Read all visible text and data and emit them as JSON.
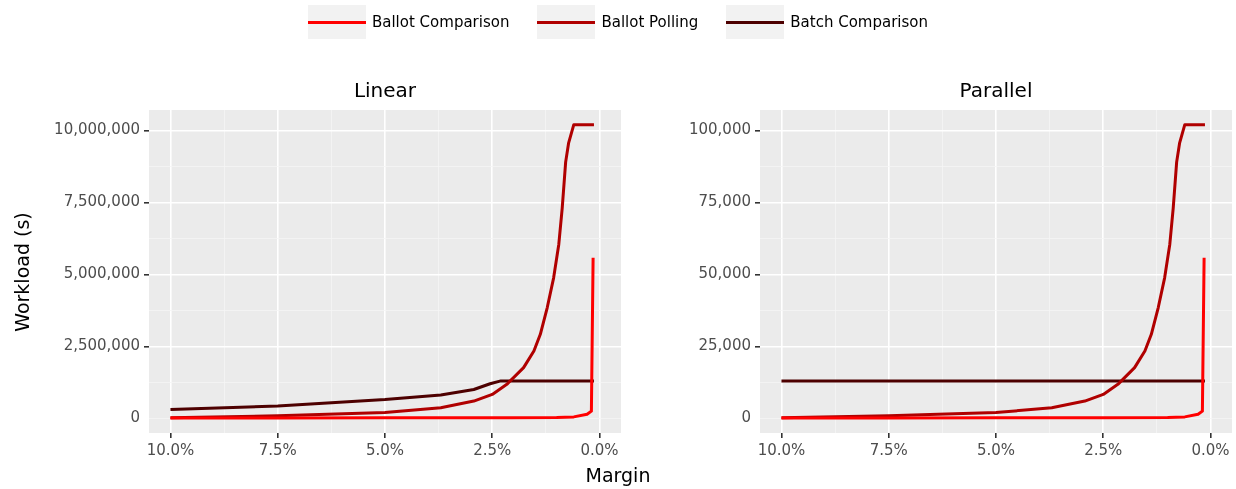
{
  "chart_data": [
    {
      "type": "line",
      "title": "Linear",
      "xlabel": "Margin",
      "ylabel": "Workload (s)",
      "legend": "top",
      "grid": true,
      "marker": "none",
      "line_style": "solid",
      "xlim": [
        10.5,
        -0.5
      ],
      "ylim": [
        -510000,
        10710000
      ],
      "xticks": [
        {
          "value": 10,
          "label": "10.0%"
        },
        {
          "value": 8.75,
          "label": null
        },
        {
          "value": 7.5,
          "label": "7.5%"
        },
        {
          "value": 6.25,
          "label": null
        },
        {
          "value": 5,
          "label": "5.0%"
        },
        {
          "value": 3.75,
          "label": null
        },
        {
          "value": 2.5,
          "label": "2.5%"
        },
        {
          "value": 1.25,
          "label": null
        },
        {
          "value": 0,
          "label": "0.0%"
        }
      ],
      "yticks": [
        0,
        {
          "value": 1250000,
          "label": null
        },
        {
          "value": 2500000,
          "label": "2,500,000"
        },
        {
          "value": 3750000,
          "label": null
        },
        {
          "value": 5000000,
          "label": "5,000,000"
        },
        {
          "value": 6250000,
          "label": null
        },
        {
          "value": 7500000,
          "label": "7,500,000"
        },
        {
          "value": 8750000,
          "label": null
        },
        {
          "value": 10000000,
          "label": "10,000,000"
        }
      ],
      "series": [
        {
          "name": "Ballot Comparison",
          "color": "#ff0000",
          "x": [
            10,
            7.5,
            5,
            2.5,
            1.0,
            0.6,
            0.29,
            0.19,
            0.15
          ],
          "values": [
            10000,
            10000,
            20000,
            20000,
            30000,
            50000,
            140000,
            250000,
            5580000
          ]
        },
        {
          "name": "Ballot Polling",
          "color": "#b00000",
          "x": [
            10,
            7.5,
            5,
            3.7,
            2.93,
            2.5,
            2.16,
            1.77,
            1.53,
            1.38,
            1.22,
            1.07,
            0.95,
            0.87,
            0.79,
            0.72,
            0.6,
            0.13
          ],
          "values": [
            20000,
            90000,
            200000,
            370000,
            600000,
            830000,
            1180000,
            1760000,
            2340000,
            2920000,
            3840000,
            4880000,
            6040000,
            7300000,
            8900000,
            9570000,
            10200000,
            10200000
          ]
        },
        {
          "name": "Batch Comparison",
          "color": "#4d0000",
          "x": [
            10,
            7.5,
            5,
            3.7,
            2.93,
            2.55,
            2.3,
            0.13
          ],
          "values": [
            310000,
            430000,
            650000,
            810000,
            1000000,
            1200000,
            1300000,
            1300000
          ]
        }
      ]
    },
    {
      "type": "line",
      "title": "Parallel",
      "grid": true,
      "marker": "none",
      "line_style": "solid",
      "xlim": [
        10.5,
        -0.5
      ],
      "ylim": [
        -5100,
        107100
      ],
      "xticks": [
        {
          "value": 10,
          "label": "10.0%"
        },
        {
          "value": 8.75,
          "label": null
        },
        {
          "value": 7.5,
          "label": "7.5%"
        },
        {
          "value": 6.25,
          "label": null
        },
        {
          "value": 5,
          "label": "5.0%"
        },
        {
          "value": 3.75,
          "label": null
        },
        {
          "value": 2.5,
          "label": "2.5%"
        },
        {
          "value": 1.25,
          "label": null
        },
        {
          "value": 0,
          "label": "0.0%"
        }
      ],
      "yticks": [
        0,
        {
          "value": 12500,
          "label": null
        },
        {
          "value": 25000,
          "label": "25,000"
        },
        {
          "value": 37500,
          "label": null
        },
        {
          "value": 50000,
          "label": "50,000"
        },
        {
          "value": 62500,
          "label": null
        },
        {
          "value": 75000,
          "label": "75,000"
        },
        {
          "value": 87500,
          "label": null
        },
        {
          "value": 100000,
          "label": "100,000"
        }
      ],
      "series": [
        {
          "color": "#ff0000",
          "x": [
            10,
            7.5,
            5,
            2.5,
            1.0,
            0.6,
            0.29,
            0.19,
            0.15
          ],
          "values": [
            100,
            100,
            200,
            200,
            300,
            500,
            1400,
            2500,
            55800
          ]
        },
        {
          "color": "#b00000",
          "x": [
            10,
            7.5,
            5,
            3.7,
            2.93,
            2.5,
            2.16,
            1.77,
            1.53,
            1.38,
            1.22,
            1.07,
            0.95,
            0.87,
            0.79,
            0.72,
            0.6,
            0.13
          ],
          "values": [
            200,
            900,
            2000,
            3700,
            6000,
            8300,
            11800,
            17600,
            23400,
            29200,
            38400,
            48800,
            60400,
            73000,
            89000,
            95700,
            102000,
            102000
          ]
        },
        {
          "color": "#4d0000",
          "x": [
            10,
            0.13
          ],
          "values": [
            13000,
            13000
          ]
        }
      ]
    }
  ]
}
